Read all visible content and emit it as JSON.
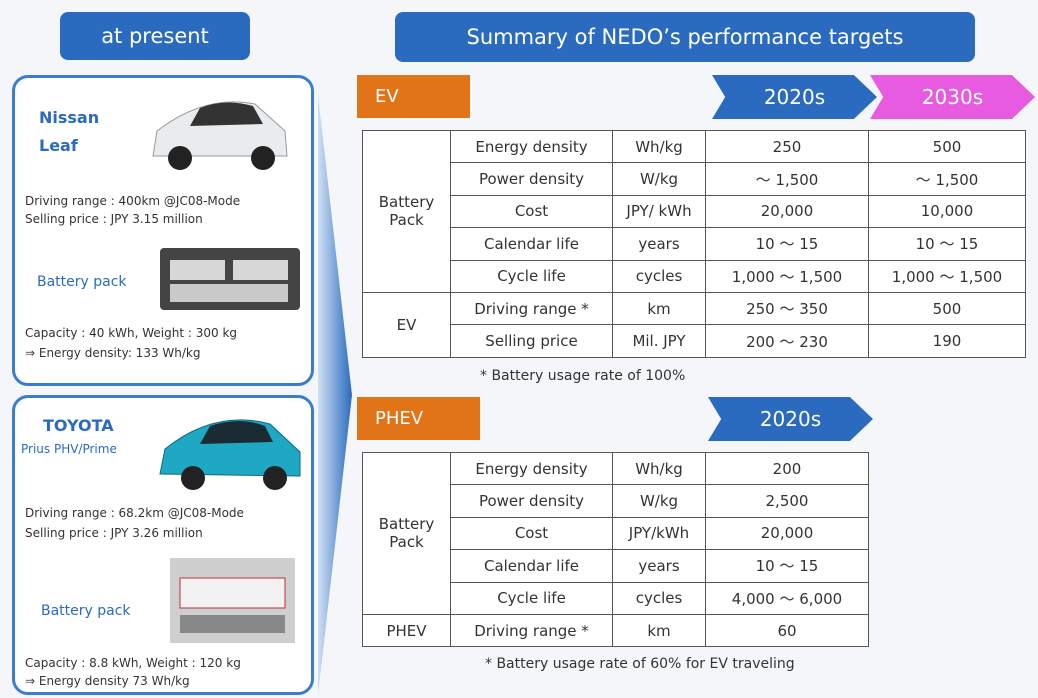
{
  "left_header": "at present",
  "right_header": "Summary of NEDO’s performance targets",
  "cars": [
    {
      "name": "Nissan Leaf",
      "subname": null,
      "specs": [
        "Driving range : 400km @JC08-Mode",
        "Selling price : JPY 3.15 million"
      ],
      "battery_label": "Battery pack",
      "battery_specs": [
        "Capacity : 40 kWh, Weight  : 300 kg",
        "⇒   Energy density: 133 Wh/kg"
      ]
    },
    {
      "name": "TOYOTA",
      "subname": "Prius PHV/Prime",
      "specs": [
        "Driving range : 68.2km @JC08-Mode",
        "Selling price : JPY 3.26 million"
      ],
      "battery_label": "Battery pack",
      "battery_specs": [
        "Capacity : 8.8 kWh, Weight  : 120 kg",
        "⇒   Energy density 73 Wh/kg"
      ]
    }
  ],
  "sections": [
    {
      "label": "EV",
      "periods": [
        "2020s",
        "2030s"
      ],
      "groups": [
        {
          "label": "Battery Pack",
          "rows": [
            [
              "Energy density",
              "Wh/kg",
              "250",
              "500"
            ],
            [
              "Power density",
              "W/kg",
              "〜 1,500",
              "〜 1,500"
            ],
            [
              "Cost",
              "JPY/ kWh",
              "20,000",
              "10,000"
            ],
            [
              "Calendar life",
              "years",
              "10 〜 15",
              "10 〜 15"
            ],
            [
              "Cycle life",
              "cycles",
              "1,000 〜 1,500",
              "1,000 〜 1,500"
            ]
          ]
        },
        {
          "label": "EV",
          "rows": [
            [
              "Driving range *",
              "km",
              "250 〜 350",
              "500"
            ],
            [
              "Selling price",
              "Mil. JPY",
              "200 〜 230",
              "190"
            ]
          ]
        }
      ],
      "note": "* Battery usage rate of 100%"
    },
    {
      "label": "PHEV",
      "periods": [
        "2020s"
      ],
      "groups": [
        {
          "label": "Battery Pack",
          "rows": [
            [
              "Energy density",
              "Wh/kg",
              "200"
            ],
            [
              "Power density",
              "W/kg",
              "2,500"
            ],
            [
              "Cost",
              "JPY/kWh",
              "20,000"
            ],
            [
              "Calendar life",
              "years",
              "10 〜 15"
            ],
            [
              "Cycle life",
              "cycles",
              "4,000 〜 6,000"
            ]
          ]
        },
        {
          "label": "PHEV",
          "rows": [
            [
              "Driving range *",
              "km",
              "60"
            ]
          ]
        }
      ],
      "note": "* Battery usage rate of 60% for EV traveling"
    }
  ]
}
